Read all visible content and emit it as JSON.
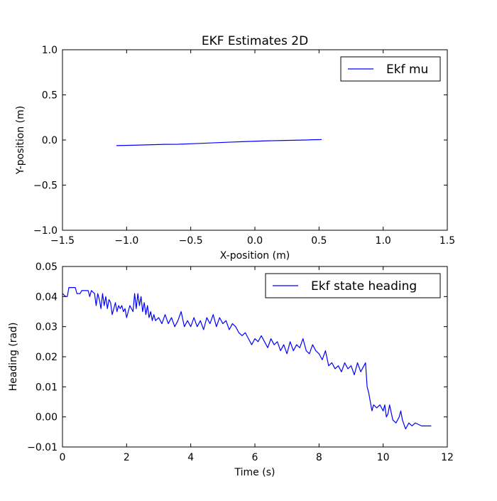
{
  "chart_data": [
    {
      "type": "line",
      "title": "EKF Estimates 2D",
      "xlabel": "X-position (m)",
      "ylabel": "Y-position (m)",
      "xlim": [
        -1.5,
        1.5
      ],
      "ylim": [
        -1.0,
        1.0
      ],
      "xticks": [
        -1.5,
        -1.0,
        -0.5,
        0.0,
        0.5,
        1.0,
        1.5
      ],
      "xtick_labels": [
        "−1.5",
        "−1.0",
        "−0.5",
        "0.0",
        "0.5",
        "1.0",
        "1.5"
      ],
      "yticks": [
        -1.0,
        -0.5,
        0.0,
        0.5,
        1.0
      ],
      "ytick_labels": [
        "−1.0",
        "−0.5",
        "0.0",
        "0.5",
        "1.0"
      ],
      "grid": false,
      "legend_position": "top-right",
      "series": [
        {
          "name": "Ekf mu",
          "color": "#0000ff",
          "x": [
            -1.08,
            -0.95,
            -0.8,
            -0.7,
            -0.6,
            -0.5,
            -0.4,
            -0.3,
            -0.2,
            -0.1,
            0.0,
            0.1,
            0.2,
            0.3,
            0.4,
            0.45,
            0.5,
            0.52
          ],
          "y": [
            -0.062,
            -0.058,
            -0.052,
            -0.048,
            -0.047,
            -0.042,
            -0.036,
            -0.03,
            -0.024,
            -0.019,
            -0.014,
            -0.009,
            -0.006,
            -0.003,
            0.0,
            0.003,
            0.004,
            0.005
          ]
        }
      ]
    },
    {
      "type": "line",
      "title": "",
      "xlabel": "Time (s)",
      "ylabel": "Heading (rad)",
      "xlim": [
        0,
        12
      ],
      "ylim": [
        -0.01,
        0.05
      ],
      "xticks": [
        0,
        2,
        4,
        6,
        8,
        10,
        12
      ],
      "xtick_labels": [
        "0",
        "2",
        "4",
        "6",
        "8",
        "10",
        "12"
      ],
      "yticks": [
        -0.01,
        0.0,
        0.01,
        0.02,
        0.03,
        0.04,
        0.05
      ],
      "ytick_labels": [
        "−0.01",
        "0.00",
        "0.01",
        "0.02",
        "0.03",
        "0.04",
        "0.05"
      ],
      "grid": false,
      "legend_position": "top-right",
      "series": [
        {
          "name": "Ekf state heading",
          "color": "#0000ff",
          "x": [
            0.0,
            0.1,
            0.15,
            0.2,
            0.4,
            0.45,
            0.5,
            0.55,
            0.6,
            0.8,
            0.85,
            0.9,
            1.0,
            1.05,
            1.1,
            1.15,
            1.2,
            1.25,
            1.3,
            1.35,
            1.4,
            1.45,
            1.5,
            1.55,
            1.6,
            1.65,
            1.7,
            1.75,
            1.8,
            1.85,
            1.9,
            1.95,
            2.0,
            2.1,
            2.2,
            2.25,
            2.3,
            2.35,
            2.4,
            2.45,
            2.5,
            2.55,
            2.6,
            2.65,
            2.7,
            2.75,
            2.8,
            2.85,
            2.9,
            3.0,
            3.1,
            3.2,
            3.3,
            3.4,
            3.5,
            3.6,
            3.7,
            3.8,
            3.9,
            4.0,
            4.1,
            4.2,
            4.3,
            4.4,
            4.5,
            4.6,
            4.7,
            4.8,
            4.9,
            5.0,
            5.1,
            5.2,
            5.3,
            5.4,
            5.5,
            5.6,
            5.7,
            5.8,
            5.9,
            6.0,
            6.1,
            6.2,
            6.3,
            6.4,
            6.5,
            6.6,
            6.7,
            6.8,
            6.9,
            7.0,
            7.1,
            7.2,
            7.3,
            7.4,
            7.5,
            7.6,
            7.7,
            7.8,
            7.9,
            8.0,
            8.1,
            8.2,
            8.3,
            8.4,
            8.5,
            8.6,
            8.7,
            8.8,
            8.9,
            9.0,
            9.1,
            9.2,
            9.3,
            9.4,
            9.45,
            9.5,
            9.55,
            9.6,
            9.65,
            9.7,
            9.8,
            9.9,
            10.0,
            10.05,
            10.1,
            10.15,
            10.2,
            10.3,
            10.4,
            10.5,
            10.55,
            10.6,
            10.7,
            10.8,
            10.9,
            11.0,
            11.2,
            11.4,
            11.5
          ],
          "y": [
            0.041,
            0.04,
            0.04,
            0.043,
            0.043,
            0.041,
            0.041,
            0.041,
            0.042,
            0.042,
            0.04,
            0.042,
            0.041,
            0.037,
            0.041,
            0.039,
            0.036,
            0.041,
            0.037,
            0.04,
            0.036,
            0.039,
            0.038,
            0.034,
            0.036,
            0.038,
            0.035,
            0.037,
            0.036,
            0.037,
            0.035,
            0.036,
            0.033,
            0.037,
            0.035,
            0.041,
            0.036,
            0.041,
            0.037,
            0.04,
            0.035,
            0.038,
            0.034,
            0.037,
            0.033,
            0.035,
            0.032,
            0.034,
            0.032,
            0.033,
            0.031,
            0.034,
            0.031,
            0.033,
            0.03,
            0.032,
            0.035,
            0.03,
            0.032,
            0.03,
            0.033,
            0.03,
            0.032,
            0.029,
            0.033,
            0.031,
            0.034,
            0.03,
            0.033,
            0.031,
            0.032,
            0.029,
            0.031,
            0.03,
            0.028,
            0.027,
            0.028,
            0.026,
            0.024,
            0.026,
            0.025,
            0.027,
            0.025,
            0.023,
            0.026,
            0.024,
            0.025,
            0.022,
            0.024,
            0.021,
            0.025,
            0.022,
            0.024,
            0.023,
            0.026,
            0.022,
            0.021,
            0.024,
            0.022,
            0.021,
            0.019,
            0.022,
            0.017,
            0.018,
            0.016,
            0.017,
            0.015,
            0.018,
            0.016,
            0.017,
            0.014,
            0.018,
            0.015,
            0.017,
            0.018,
            0.01,
            0.008,
            0.005,
            0.002,
            0.004,
            0.003,
            0.004,
            0.002,
            0.004,
            0.0,
            0.001,
            0.004,
            -0.001,
            -0.002,
            0.0,
            0.002,
            -0.001,
            -0.004,
            -0.002,
            -0.003,
            -0.002,
            -0.003,
            -0.003,
            -0.003
          ]
        }
      ]
    }
  ]
}
